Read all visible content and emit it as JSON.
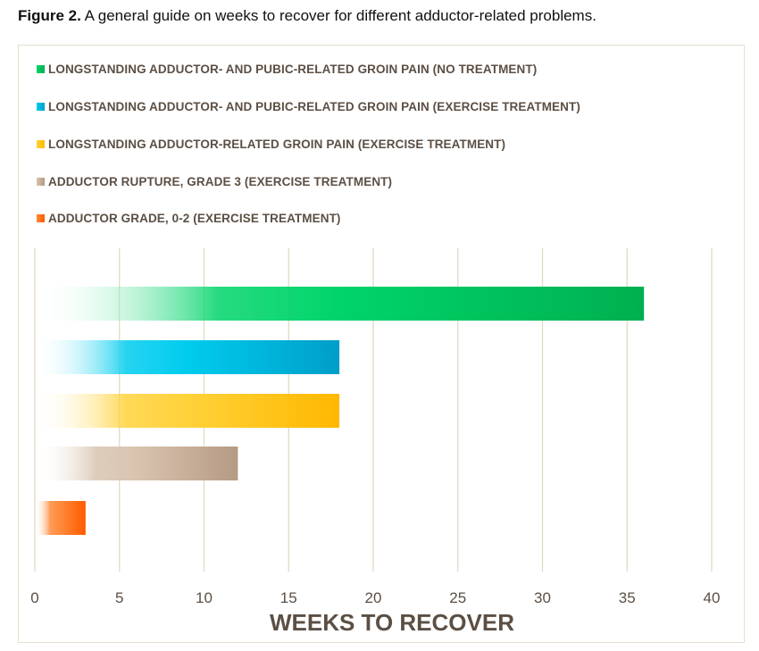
{
  "caption": {
    "prefix": "Figure 2.",
    "text": " A general guide on weeks to recover for different adductor-related problems."
  },
  "chart_data": {
    "type": "bar",
    "orientation": "horizontal",
    "title": "",
    "xlabel": "WEEKS TO RECOVER",
    "ylabel": "",
    "xlim": [
      0,
      40
    ],
    "xticks": [
      0,
      5,
      10,
      15,
      20,
      25,
      30,
      35,
      40
    ],
    "grid": true,
    "legend_position": "top",
    "series": [
      {
        "name": "LONGSTANDING ADDUCTOR- AND PUBIC-RELATED GROIN PAIN (NO TREATMENT)",
        "value": 36,
        "color": "#00b050",
        "color_light": "#00d46a"
      },
      {
        "name": "LONGSTANDING ADDUCTOR- AND PUBIC-RELATED GROIN PAIN (EXERCISE TREATMENT)",
        "value": 18,
        "color": "#009ec8",
        "color_light": "#00ccee"
      },
      {
        "name": "LONGSTANDING ADDUCTOR-RELATED GROIN PAIN (EXERCISE TREATMENT)",
        "value": 18,
        "color": "#ffb800",
        "color_light": "#ffd23a"
      },
      {
        "name": "ADDUCTOR RUPTURE, GRADE 3 (EXERCISE TREATMENT)",
        "value": 12,
        "color": "#b59a84",
        "color_light": "#d9c4b0"
      },
      {
        "name": "ADDUCTOR GRADE, 0-2 (EXERCISE TREATMENT)",
        "value": 3,
        "color": "#ff5a00",
        "color_light": "#ff8a3a"
      }
    ]
  }
}
